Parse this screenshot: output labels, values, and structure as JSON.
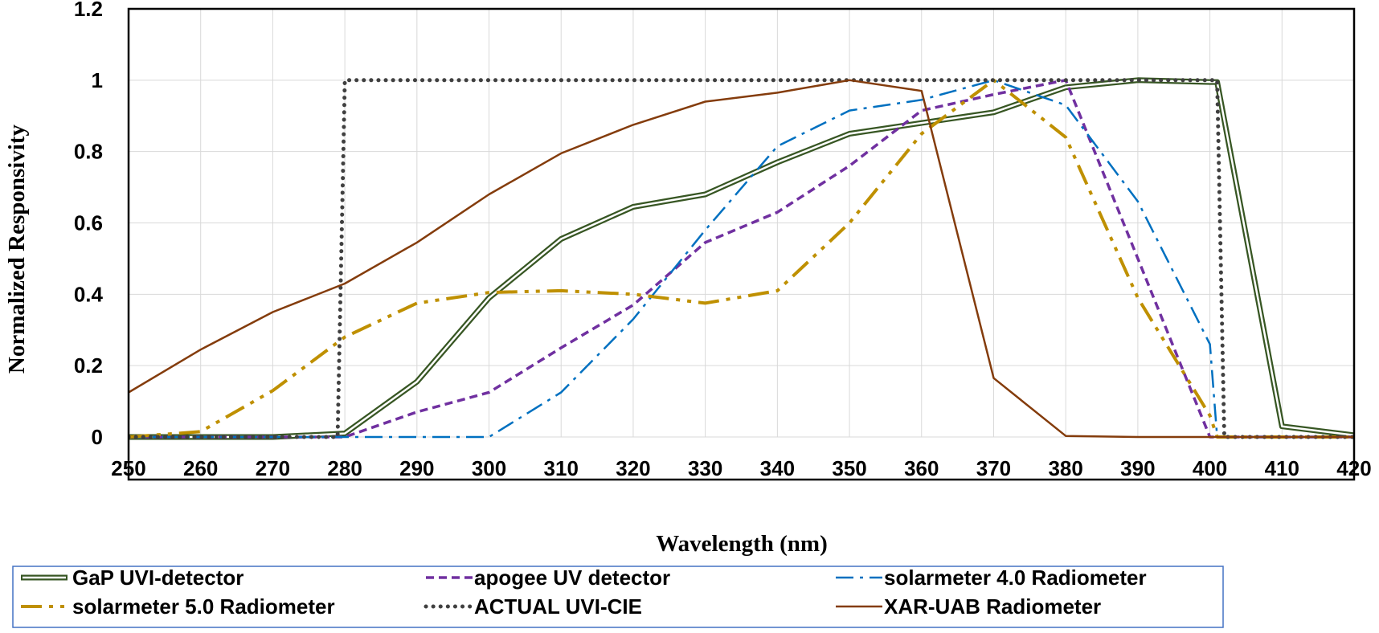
{
  "chart_data": {
    "type": "line",
    "title": "",
    "xlabel": "Wavelength (nm)",
    "ylabel": "Normalized Responsivity",
    "xlim": [
      250,
      420
    ],
    "ylim": [
      0,
      1.2
    ],
    "xticks": [
      "250",
      "260",
      "270",
      "280",
      "290",
      "300",
      "310",
      "320",
      "330",
      "340",
      "350",
      "360",
      "370",
      "380",
      "390",
      "400",
      "410",
      "420"
    ],
    "yticks": [
      "0",
      "0.2",
      "0.4",
      "0.6",
      "0.8",
      "1",
      "1.2"
    ],
    "grid": true,
    "legend_position": "bottom",
    "series": [
      {
        "name": "GaP UVI-detector",
        "color": "#375623",
        "style": "double",
        "x": [
          250,
          260,
          270,
          280,
          290,
          300,
          310,
          320,
          330,
          340,
          350,
          360,
          370,
          380,
          390,
          400,
          401,
          410,
          420
        ],
        "y": [
          0,
          0,
          0,
          0.01,
          0.155,
          0.39,
          0.555,
          0.645,
          0.68,
          0.77,
          0.85,
          0.88,
          0.91,
          0.98,
          1.0,
          0.995,
          0.995,
          0.03,
          0.005
        ]
      },
      {
        "name": "apogee UV detector",
        "color": "#7030A0",
        "style": "dash",
        "x": [
          250,
          260,
          270,
          280,
          290,
          300,
          310,
          320,
          330,
          340,
          350,
          360,
          370,
          380,
          390,
          400,
          420
        ],
        "y": [
          0,
          0,
          0,
          0,
          0.07,
          0.125,
          0.25,
          0.37,
          0.545,
          0.63,
          0.76,
          0.915,
          0.96,
          1.0,
          0.5,
          0,
          0
        ]
      },
      {
        "name": "solarmeter 4.0 Radiometer",
        "color": "#0070C0",
        "style": "dashdot",
        "x": [
          250,
          260,
          270,
          280,
          290,
          300,
          310,
          320,
          330,
          340,
          350,
          360,
          370,
          380,
          390,
          400,
          401,
          420
        ],
        "y": [
          0,
          0,
          0,
          0,
          0,
          0,
          0.125,
          0.33,
          0.58,
          0.815,
          0.915,
          0.945,
          1.0,
          0.93,
          0.66,
          0.26,
          0,
          0
        ]
      },
      {
        "name": "solarmeter 5.0 Radiometer",
        "color": "#BF9000",
        "style": "longdashdotdot",
        "x": [
          250,
          260,
          270,
          280,
          290,
          300,
          310,
          320,
          330,
          340,
          350,
          360,
          370,
          380,
          390,
          400,
          401,
          420
        ],
        "y": [
          0,
          0.015,
          0.13,
          0.28,
          0.375,
          0.405,
          0.41,
          0.4,
          0.375,
          0.41,
          0.6,
          0.85,
          1.0,
          0.84,
          0.39,
          0.06,
          0,
          0
        ]
      },
      {
        "name": "ACTUAL UVI-CIE",
        "color": "#404040",
        "style": "dot",
        "x": [
          250,
          279,
          280,
          401,
          402,
          420
        ],
        "y": [
          0,
          0,
          1.0,
          1.0,
          0,
          0
        ]
      },
      {
        "name": "XAR-UAB Radiometer",
        "color": "#843C0C",
        "style": "solid",
        "x": [
          250,
          260,
          270,
          280,
          290,
          300,
          310,
          320,
          330,
          340,
          350,
          360,
          370,
          380,
          390,
          400,
          410,
          420
        ],
        "y": [
          0.125,
          0.245,
          0.35,
          0.43,
          0.545,
          0.68,
          0.795,
          0.875,
          0.94,
          0.965,
          1.0,
          0.97,
          0.165,
          0.003,
          0,
          0,
          0,
          0
        ]
      }
    ]
  }
}
